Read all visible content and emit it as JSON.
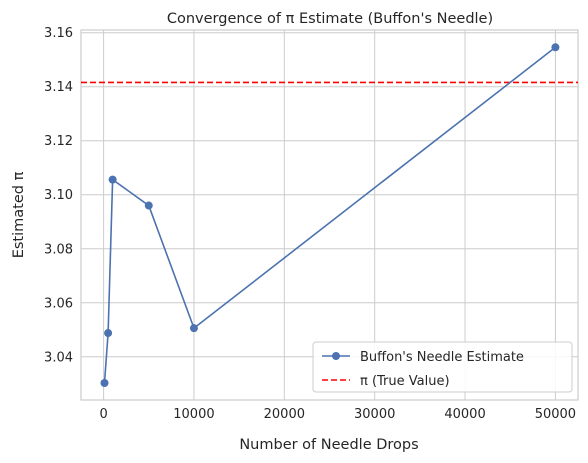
{
  "chart_data": {
    "type": "line",
    "title": "Convergence of π Estimate (Buffon's Needle)",
    "xlabel": "Number of Needle Drops",
    "ylabel": "Estimated π",
    "xlim": [
      -2500,
      52500
    ],
    "ylim": [
      3.024,
      3.161
    ],
    "x_ticks": [
      0,
      10000,
      20000,
      30000,
      40000,
      50000
    ],
    "x_tick_labels": [
      "0",
      "10000",
      "20000",
      "30000",
      "40000",
      "50000"
    ],
    "y_ticks": [
      3.04,
      3.06,
      3.08,
      3.1,
      3.12,
      3.14,
      3.16
    ],
    "y_tick_labels": [
      "3.04",
      "3.06",
      "3.08",
      "3.10",
      "3.12",
      "3.14",
      "3.16"
    ],
    "grid": true,
    "legend_position": "lower-right",
    "series": [
      {
        "name": "Buffon's Needle Estimate",
        "color": "#4c72b0",
        "marker": "circle",
        "line_style": "solid",
        "x": [
          100,
          500,
          1000,
          5000,
          10000,
          50000
        ],
        "y": [
          3.0303,
          3.0488,
          3.1056,
          3.096,
          3.0506,
          3.1546
        ]
      }
    ],
    "reference_lines": [
      {
        "name": "π (True Value)",
        "y": 3.14159,
        "color": "#ff0000",
        "line_style": "dashed"
      }
    ]
  }
}
